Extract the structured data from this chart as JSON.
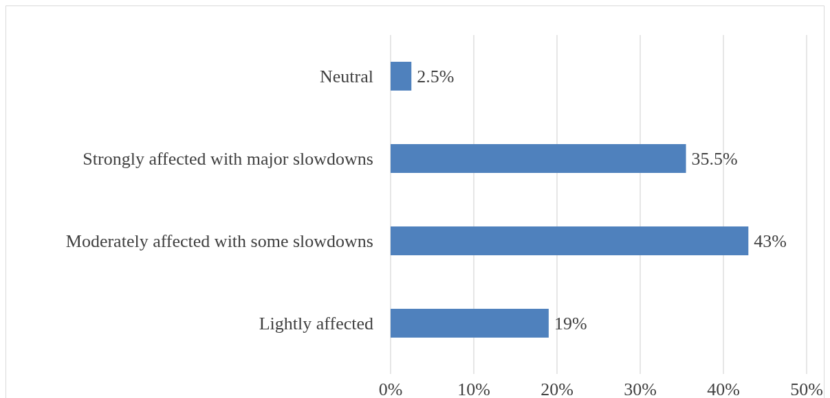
{
  "chart_data": {
    "type": "bar",
    "orientation": "horizontal",
    "categories": [
      "Neutral",
      "Strongly affected with major slowdowns",
      "Moderately affected with some slowdowns",
      "Lightly affected"
    ],
    "values": [
      2.5,
      35.5,
      43,
      19
    ],
    "value_labels": [
      "2.5%",
      "35.5%",
      "43%",
      "19%"
    ],
    "color": "#4f81bd",
    "xlim": [
      0,
      50
    ],
    "xticks": [
      {
        "value": 0,
        "label": "0%"
      },
      {
        "value": 10,
        "label": "10%"
      },
      {
        "value": 20,
        "label": "20%"
      },
      {
        "value": 30,
        "label": "30%"
      },
      {
        "value": 40,
        "label": "40%"
      },
      {
        "value": 50,
        "label": "50%"
      }
    ],
    "grid": "x"
  }
}
